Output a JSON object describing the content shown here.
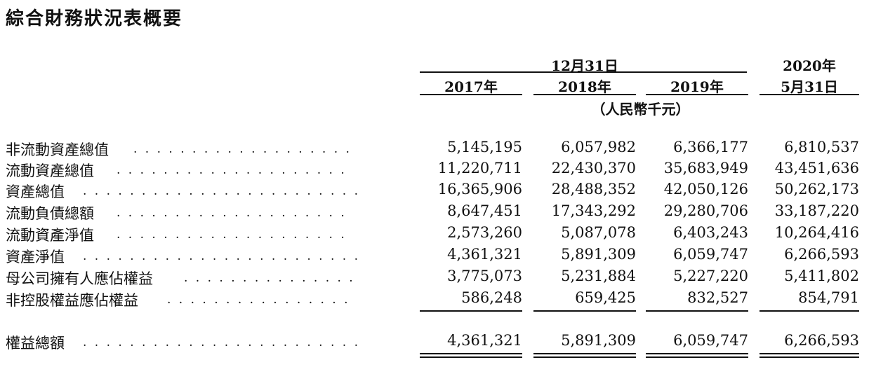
{
  "title": "綜合財務狀況表概要",
  "header": {
    "group_label": "12月31日",
    "col_2020_line1": "2020年",
    "col_2020_line2": "5月31日",
    "years": [
      "2017年",
      "2018年",
      "2019年"
    ],
    "unit": "（人民幣千元）"
  },
  "rows": [
    {
      "label": "非流動資產總值",
      "dots": ". . . . . . . . . . . . . . . . . . .",
      "values": [
        "5,145,195",
        "6,057,982",
        "6,366,177",
        "6,810,537"
      ]
    },
    {
      "label": "流動資產總值",
      "dots": ". . . . . . . . . . . . . . . . . . . .",
      "values": [
        "11,220,711",
        "22,430,370",
        "35,683,949",
        "43,451,636"
      ]
    },
    {
      "label": "資產總值",
      "dots": ". . . . . . . . . . . . . . . . . . . . . . . .",
      "values": [
        "16,365,906",
        "28,488,352",
        "42,050,126",
        "50,262,173"
      ]
    },
    {
      "label": "流動負債總額",
      "dots": ". . . . . . . . . . . . . . . . . . . .",
      "values": [
        "8,647,451",
        "17,343,292",
        "29,280,706",
        "33,187,220"
      ]
    },
    {
      "label": "流動資產淨值",
      "dots": ". . . . . . . . . . . . . . . . . . . .",
      "values": [
        "2,573,260",
        "5,087,078",
        "6,403,243",
        "10,264,416"
      ]
    },
    {
      "label": "資產淨值",
      "dots": ". . . . . . . . . . . . . . . . . . . . . . . .",
      "values": [
        "4,361,321",
        "5,891,309",
        "6,059,747",
        "6,266,593"
      ]
    },
    {
      "label": "母公司擁有人應佔權益",
      "dots": ". . . . . . . . . . . . . . .",
      "values": [
        "3,775,073",
        "5,231,884",
        "5,227,220",
        "5,411,802"
      ]
    },
    {
      "label": "非控股權益應佔權益",
      "dots": ". . . . . . . . . . . . . . . .",
      "values": [
        "586,248",
        "659,425",
        "832,527",
        "854,791"
      ]
    }
  ],
  "total": {
    "label": "權益總額",
    "dots": ". . . . . . . . . . . . . . . . . . . . . . . .",
    "values": [
      "4,361,321",
      "5,891,309",
      "6,059,747",
      "6,266,593"
    ]
  }
}
